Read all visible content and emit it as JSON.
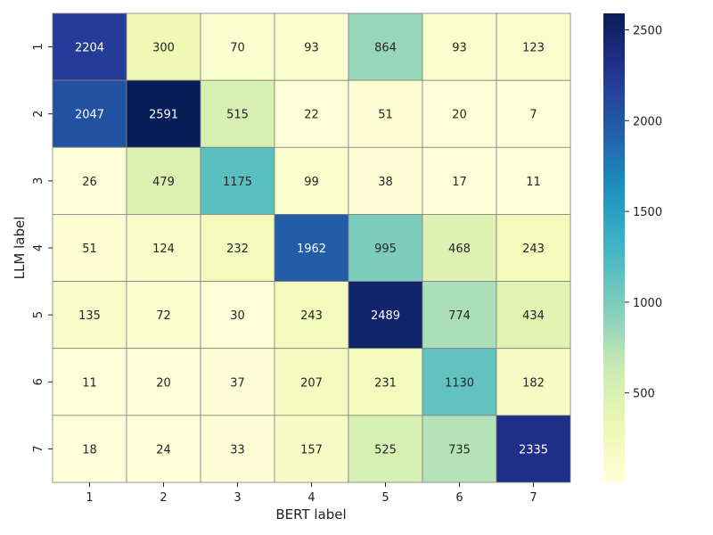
{
  "chart_data": {
    "type": "heatmap",
    "title": "",
    "xlabel": "BERT label",
    "ylabel": "LLM label",
    "x_categories": [
      "1",
      "2",
      "3",
      "4",
      "5",
      "6",
      "7"
    ],
    "y_categories": [
      "1",
      "2",
      "3",
      "4",
      "5",
      "6",
      "7"
    ],
    "values": [
      [
        2204,
        300,
        70,
        93,
        864,
        93,
        123
      ],
      [
        2047,
        2591,
        515,
        22,
        51,
        20,
        7
      ],
      [
        26,
        479,
        1175,
        99,
        38,
        17,
        11
      ],
      [
        51,
        124,
        232,
        1962,
        995,
        468,
        243
      ],
      [
        135,
        72,
        30,
        243,
        2489,
        774,
        434
      ],
      [
        11,
        20,
        37,
        207,
        231,
        1130,
        182
      ],
      [
        18,
        24,
        33,
        157,
        525,
        735,
        2335
      ]
    ],
    "colormap": "YlGnBu",
    "vmin": 7,
    "vmax": 2591,
    "colorbar_ticks": [
      500,
      1000,
      1500,
      2000,
      2500
    ],
    "colorbar_tick_labels": [
      "500",
      "1000",
      "1500",
      "2000",
      "2500"
    ],
    "grid_line_color": "#808080"
  }
}
